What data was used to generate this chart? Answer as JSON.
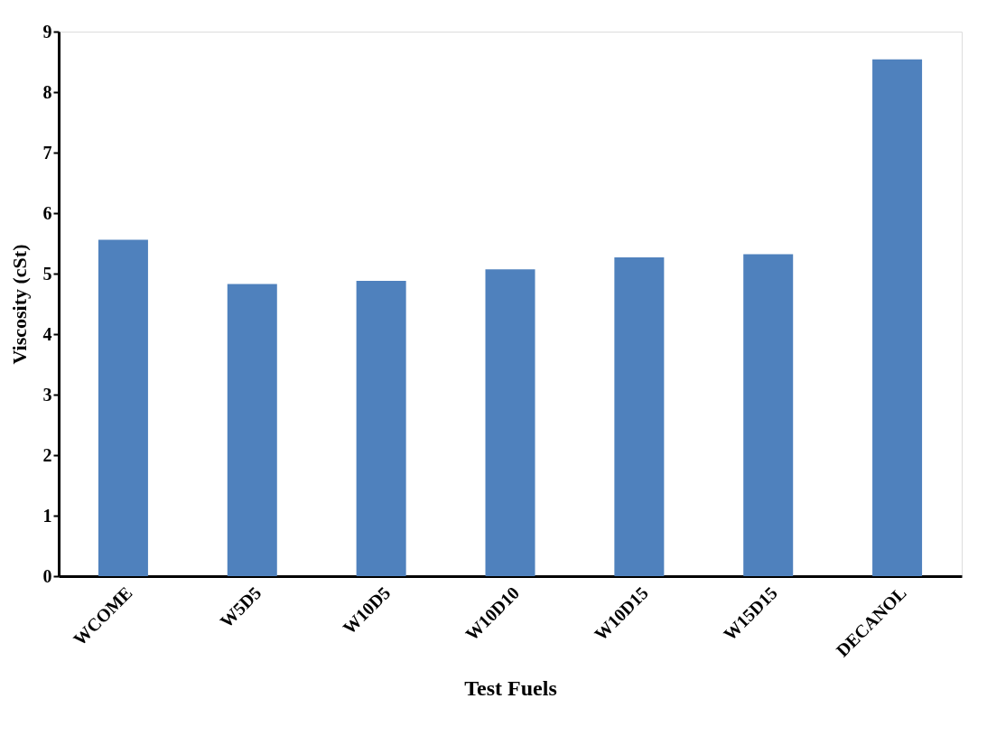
{
  "chart_data": {
    "type": "bar",
    "xlabel": "Test Fuels",
    "ylabel": "Viscosity  (cSt)",
    "categories": [
      "WCOME",
      "W5D5",
      "W10D5",
      "W10D10",
      "W10D15",
      "W15D15",
      "DECANOL"
    ],
    "series": [
      {
        "color": "#4f81bd",
        "values": [
          5.56,
          4.83,
          4.88,
          5.07,
          5.27,
          5.32,
          8.54
        ]
      }
    ],
    "ylim": [
      0,
      9
    ],
    "yticks": [
      0,
      1,
      2,
      3,
      4,
      5,
      6,
      7,
      8,
      9
    ],
    "grid": false
  }
}
